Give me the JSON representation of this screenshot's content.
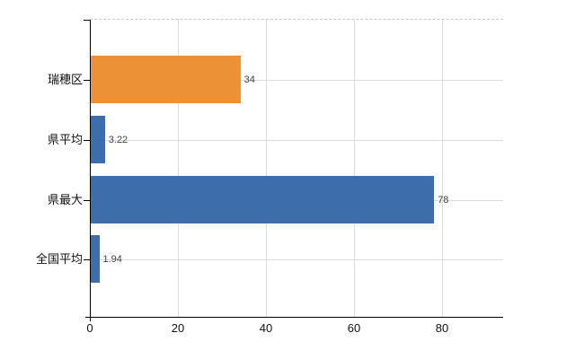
{
  "chart_data": {
    "type": "bar",
    "orientation": "horizontal",
    "categories": [
      "瑞穂区",
      "県平均",
      "県最大",
      "全国平均"
    ],
    "values": [
      34,
      3.22,
      78,
      1.94
    ],
    "value_labels": [
      "34",
      "3.22",
      "78",
      "1.94"
    ],
    "bar_colors": [
      "#EC9136",
      "#3D6DAB",
      "#3D6DAB",
      "#3D6DAB"
    ],
    "highlight_color": "#EC9136",
    "base_color": "#3D6DAB",
    "x_ticks": [
      "0",
      "20",
      "40",
      "60",
      "80"
    ],
    "xlim": [
      0,
      93.8
    ],
    "grid": true,
    "legend_position": "none",
    "axis_color": "#000000",
    "gridline_color": "#dcdcdc",
    "top_border_style": "dashed",
    "value_label_color": "#404040",
    "background_color": "#ffffff"
  }
}
